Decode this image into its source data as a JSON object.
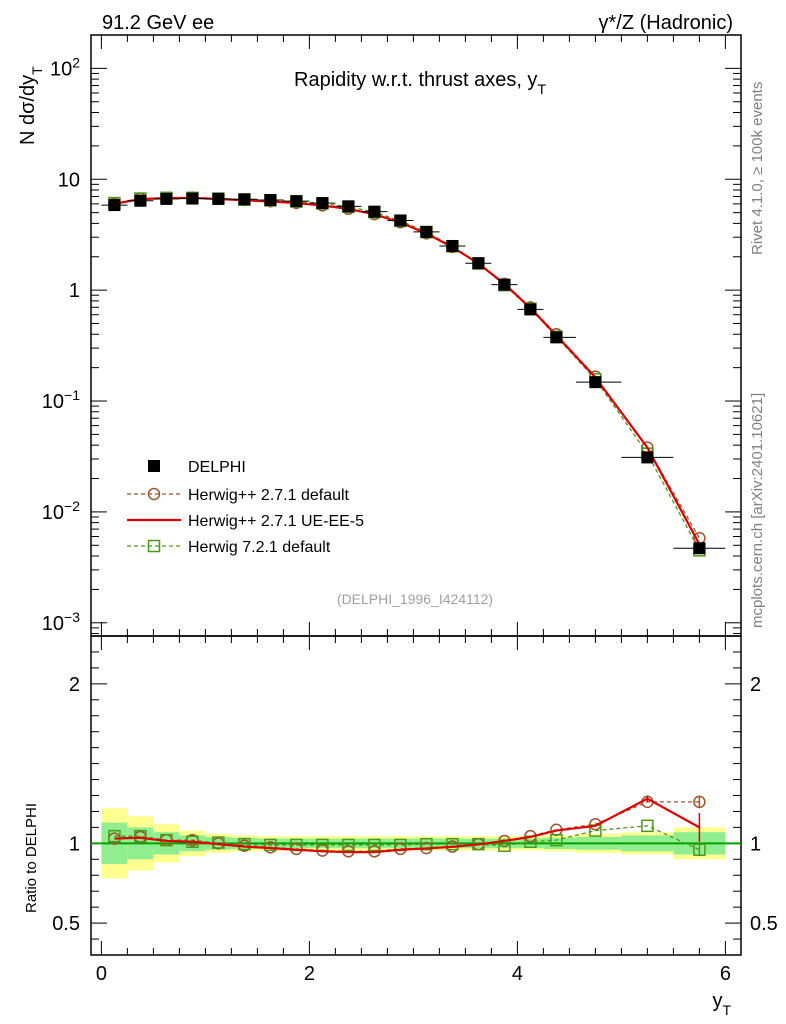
{
  "header": {
    "left": "91.2 GeV ee",
    "right": "γ*/Z (Hadronic)"
  },
  "side": {
    "rivet": "Rivet 4.1.0, ≥ 100k events",
    "mcplots": "mcplots.cern.ch [arXiv:2401.10621]"
  },
  "chart_data": [
    {
      "type": "scatter",
      "scale": "log",
      "title": "Rapidity w.r.t. thrust axes, y_T",
      "analysis_label": "(DELPHI_1996_I424112)",
      "ylabel": "N dσ/dy_T",
      "ylim": [
        0.00076,
        200
      ],
      "yticks": [
        {
          "value": 0.001,
          "base": "10",
          "exp": "−3"
        },
        {
          "value": 0.01,
          "base": "10",
          "exp": "−2"
        },
        {
          "value": 0.1,
          "base": "10",
          "exp": "−1"
        },
        {
          "value": 1,
          "base": "1",
          "exp": ""
        },
        {
          "value": 10,
          "base": "10",
          "exp": ""
        },
        {
          "value": 100,
          "base": "10",
          "exp": "2"
        }
      ],
      "xlim": [
        -0.1,
        6.15
      ],
      "x": [
        0.125,
        0.375,
        0.625,
        0.875,
        1.125,
        1.375,
        1.625,
        1.875,
        2.125,
        2.375,
        2.625,
        2.875,
        3.125,
        3.375,
        3.625,
        3.875,
        4.125,
        4.375,
        4.75,
        5.25,
        5.75
      ],
      "series": [
        {
          "name": "DELPHI",
          "style": "data",
          "color": "#000000",
          "values": [
            5.85,
            6.4,
            6.65,
            6.7,
            6.65,
            6.6,
            6.5,
            6.35,
            6.1,
            5.7,
            5.1,
            4.25,
            3.35,
            2.5,
            1.75,
            1.12,
            0.67,
            0.375,
            0.148,
            0.031,
            0.0047
          ]
        },
        {
          "name": "Herwig++ 2.7.1 default",
          "style": "circle-dashed",
          "color": "#a0522d",
          "values": [
            6.03,
            6.65,
            6.78,
            6.83,
            6.65,
            6.5,
            6.34,
            6.13,
            5.82,
            5.42,
            4.85,
            4.1,
            3.25,
            2.45,
            1.74,
            1.14,
            0.7,
            0.4,
            0.166,
            0.038,
            0.0058
          ]
        },
        {
          "name": "Herwig++ 2.7.1 UE-EE-5",
          "style": "solid",
          "color": "#e00000",
          "values": [
            6.01,
            6.62,
            6.76,
            6.79,
            6.63,
            6.46,
            6.3,
            6.1,
            5.8,
            5.4,
            4.83,
            4.08,
            3.24,
            2.44,
            1.74,
            1.14,
            0.69,
            0.39,
            0.163,
            0.038,
            0.0051
          ]
        },
        {
          "name": "Herwig 7.2.1 default",
          "style": "square-dashed",
          "color": "#4a9a1a",
          "values": [
            6.1,
            6.7,
            6.8,
            6.8,
            6.7,
            6.55,
            6.45,
            6.3,
            6.05,
            5.65,
            5.05,
            4.22,
            3.34,
            2.49,
            1.74,
            1.11,
            0.68,
            0.38,
            0.157,
            0.0335,
            0.0045
          ]
        }
      ]
    },
    {
      "type": "scatter",
      "scale": "linear",
      "ylabel": "Ratio to DELPHI",
      "xlabel": "y_T",
      "ylim": [
        0.3,
        2.3
      ],
      "yticks": [
        {
          "value": 0.5,
          "label": "0.5"
        },
        {
          "value": 1,
          "label": "1"
        },
        {
          "value": 2,
          "label": "2"
        }
      ],
      "xlim": [
        -0.1,
        6.15
      ],
      "xticks": [
        {
          "value": 0,
          "label": "0"
        },
        {
          "value": 2,
          "label": "2"
        },
        {
          "value": 4,
          "label": "4"
        },
        {
          "value": 6,
          "label": "6"
        }
      ],
      "x": [
        0.125,
        0.375,
        0.625,
        0.875,
        1.125,
        1.375,
        1.625,
        1.875,
        2.125,
        2.375,
        2.625,
        2.875,
        3.125,
        3.375,
        3.625,
        3.875,
        4.125,
        4.375,
        4.75,
        5.25,
        5.75
      ],
      "bands": {
        "stat_halfwidth": [
          0.13,
          0.1,
          0.07,
          0.05,
          0.04,
          0.035,
          0.03,
          0.03,
          0.03,
          0.03,
          0.03,
          0.03,
          0.03,
          0.03,
          0.03,
          0.03,
          0.03,
          0.035,
          0.04,
          0.05,
          0.07
        ],
        "total_halfwidth": [
          0.22,
          0.17,
          0.12,
          0.08,
          0.06,
          0.05,
          0.045,
          0.045,
          0.045,
          0.045,
          0.045,
          0.045,
          0.045,
          0.045,
          0.045,
          0.045,
          0.045,
          0.05,
          0.06,
          0.07,
          0.1
        ],
        "stat_color": "#90ee90",
        "total_color": "#ffff90"
      },
      "series": [
        {
          "name": "Herwig++ 2.7.1 default",
          "style": "circle-dashed",
          "color": "#a0522d",
          "values": [
            1.03,
            1.04,
            1.02,
            1.02,
            1.0,
            0.985,
            0.975,
            0.965,
            0.955,
            0.95,
            0.95,
            0.965,
            0.97,
            0.98,
            0.995,
            1.015,
            1.045,
            1.085,
            1.12,
            1.26,
            1.26
          ],
          "errors": [
            0,
            0,
            0,
            0,
            0,
            0,
            0,
            0,
            0,
            0,
            0,
            0,
            0,
            0,
            0,
            0,
            0,
            0,
            0,
            0,
            0.04
          ]
        },
        {
          "name": "Herwig++ 2.7.1 UE-EE-5",
          "style": "solid",
          "color": "#e00000",
          "values": [
            1.03,
            1.035,
            1.015,
            1.01,
            0.995,
            0.98,
            0.97,
            0.96,
            0.95,
            0.945,
            0.945,
            0.96,
            0.968,
            0.978,
            0.993,
            1.015,
            1.04,
            1.08,
            1.11,
            1.28,
            1.1
          ],
          "errors": [
            0,
            0,
            0,
            0,
            0,
            0,
            0,
            0,
            0,
            0,
            0,
            0,
            0,
            0,
            0,
            0,
            0,
            0,
            0,
            0.02,
            0.09
          ]
        },
        {
          "name": "Herwig 7.2.1 default",
          "style": "square-dashed",
          "color": "#4a9a1a",
          "values": [
            1.045,
            1.045,
            1.02,
            1.01,
            1.005,
            0.995,
            0.99,
            0.99,
            0.99,
            0.99,
            0.99,
            0.99,
            0.995,
            0.995,
            0.995,
            0.985,
            1.01,
            1.02,
            1.08,
            1.11,
            0.96
          ],
          "errors": [
            0,
            0,
            0,
            0,
            0,
            0,
            0,
            0,
            0,
            0,
            0,
            0,
            0,
            0,
            0,
            0,
            0,
            0,
            0,
            0,
            0.04
          ]
        }
      ]
    }
  ]
}
